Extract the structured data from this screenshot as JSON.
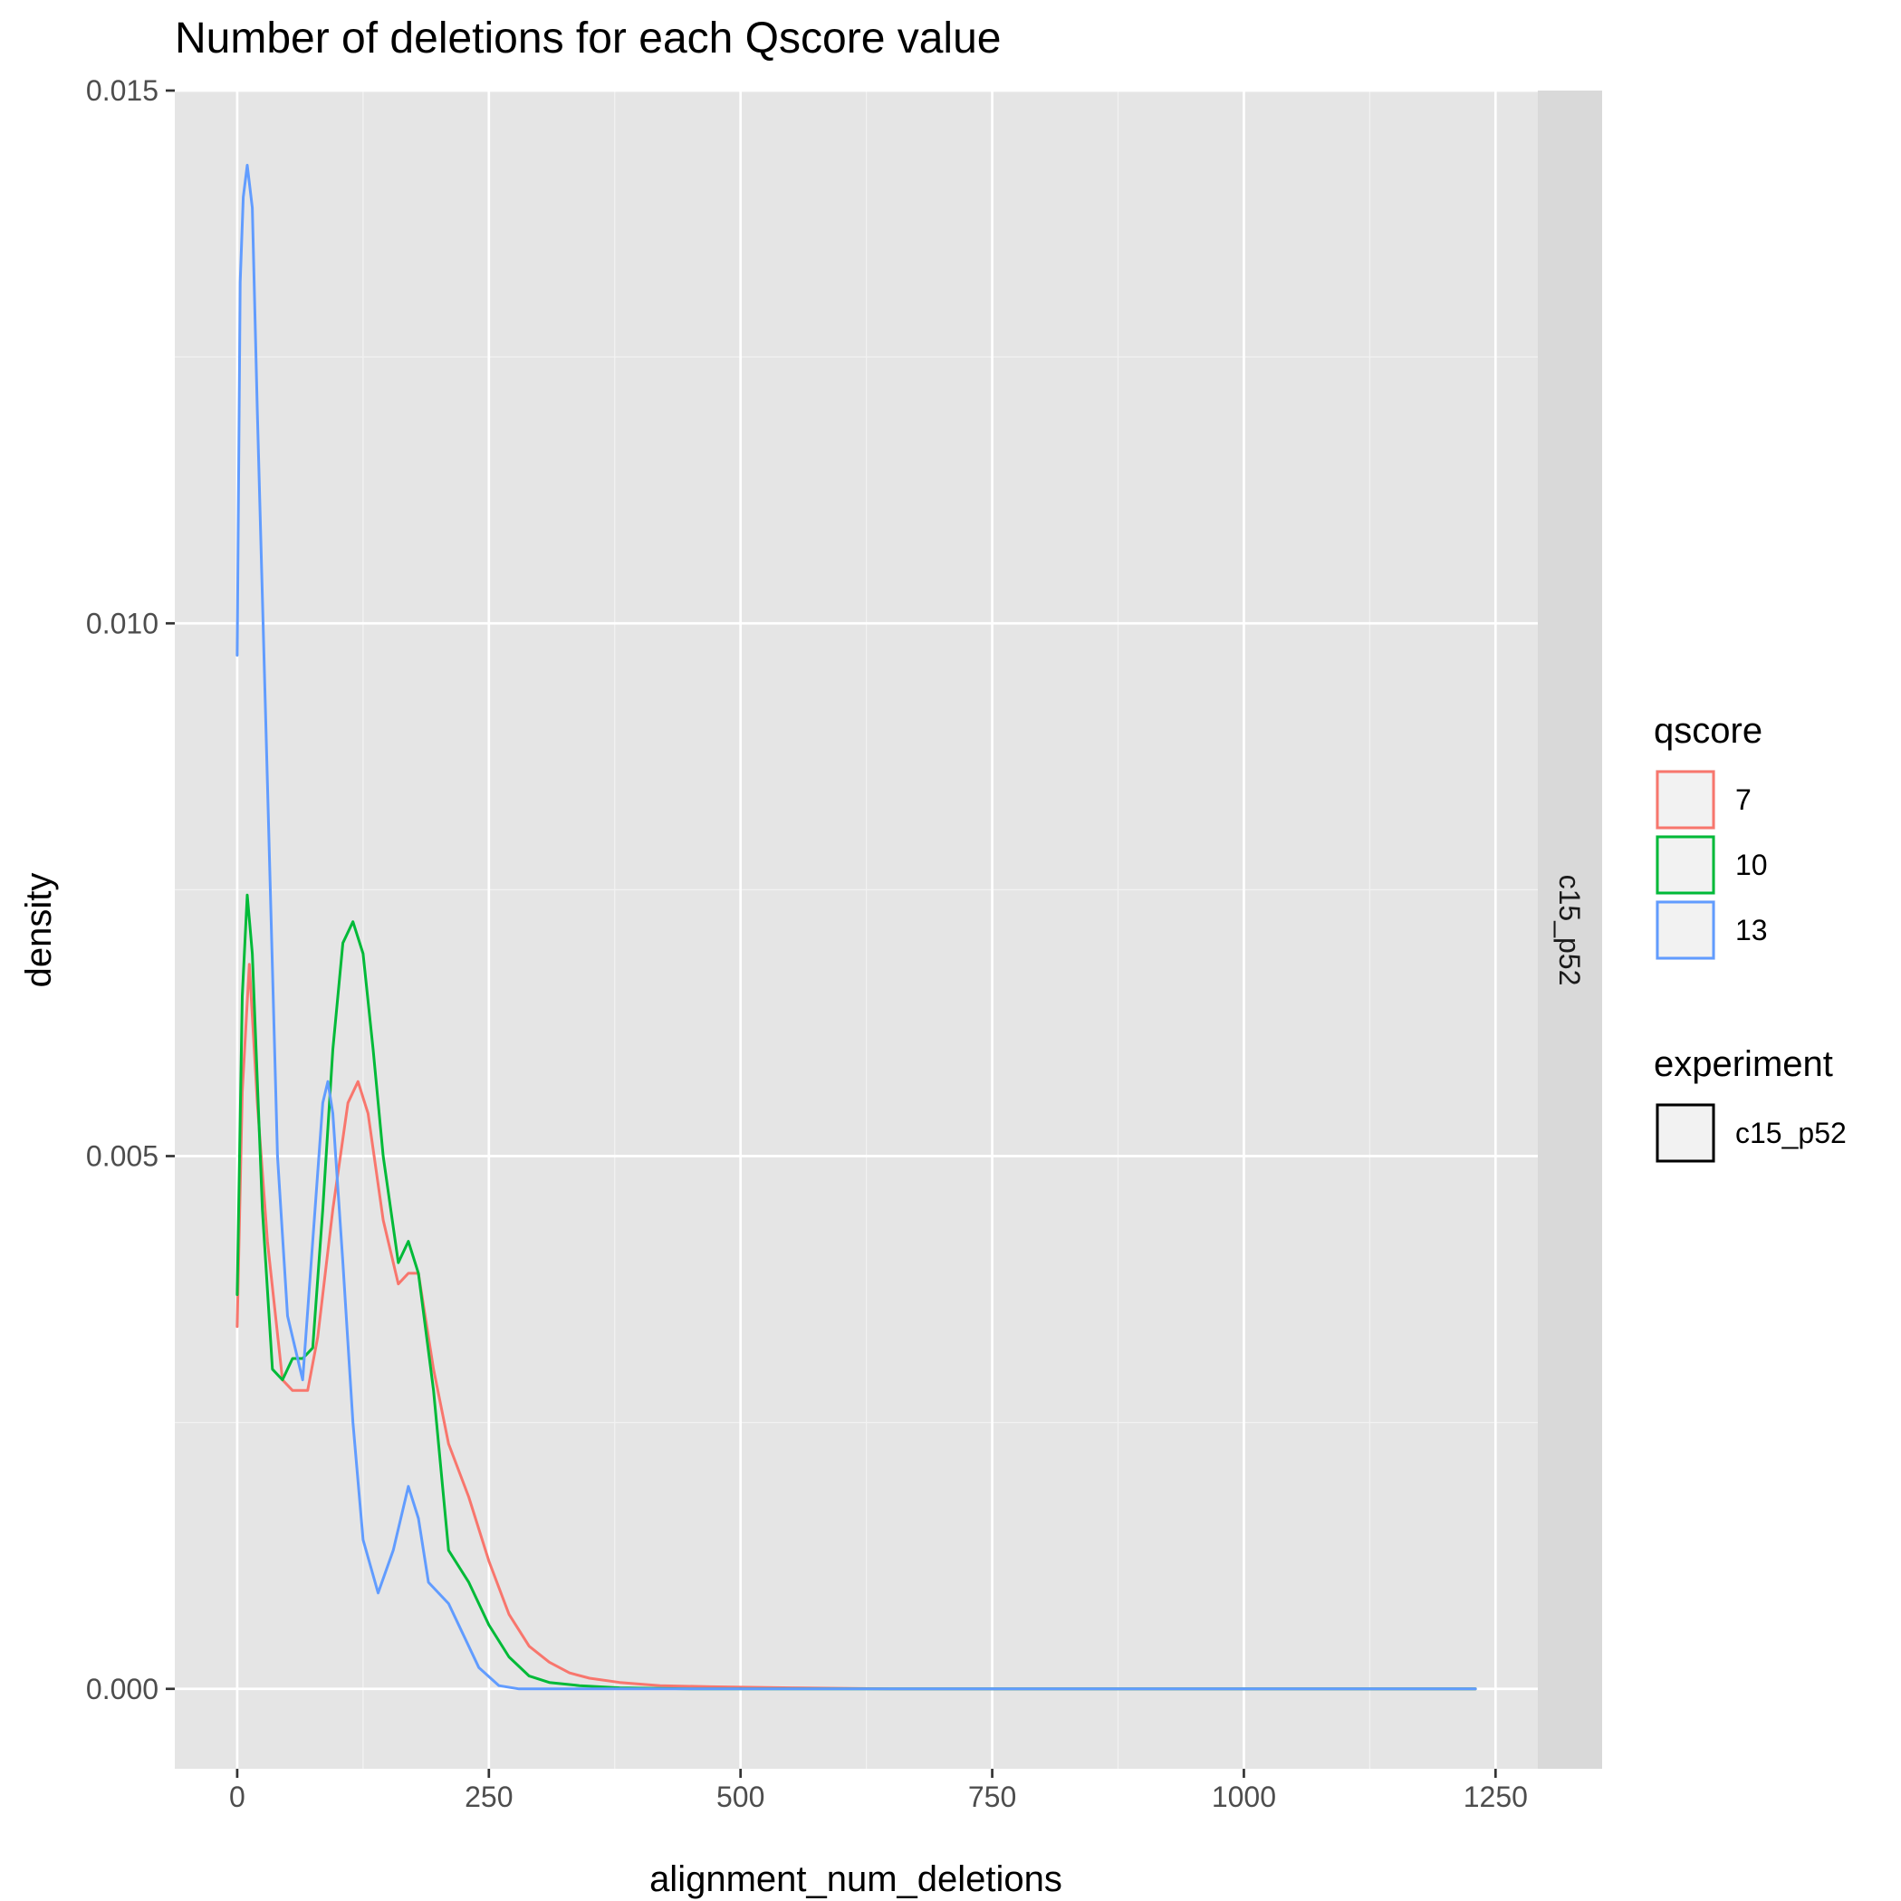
{
  "chart_data": {
    "type": "line",
    "title": "Number of deletions for each Qscore value",
    "xlabel": "alignment_num_deletions",
    "ylabel": "density",
    "xlim": [
      -62,
      1292
    ],
    "ylim": [
      -0.00075,
      0.015
    ],
    "x_ticks": [
      0,
      250,
      500,
      750,
      1000,
      1250
    ],
    "x_tick_labels": [
      "0",
      "250",
      "500",
      "750",
      "1000",
      "1250"
    ],
    "y_ticks": [
      0.0,
      0.005,
      0.01,
      0.015
    ],
    "y_tick_labels": [
      "0.000",
      "0.005",
      "0.010",
      "0.015"
    ],
    "grid": true,
    "facet_label": "c15_p52",
    "legend": {
      "position": "right",
      "groups": [
        {
          "title": "qscore",
          "entries": [
            {
              "label": "7",
              "color": "#F8766D"
            },
            {
              "label": "10",
              "color": "#00BA38"
            },
            {
              "label": "13",
              "color": "#619CFF"
            }
          ]
        },
        {
          "title": "experiment",
          "entries": [
            {
              "label": "c15_p52",
              "color": "#000000"
            }
          ]
        }
      ]
    },
    "series": [
      {
        "name": "7",
        "color": "#F8766D",
        "x": [
          0,
          5,
          12,
          20,
          30,
          45,
          55,
          70,
          80,
          95,
          110,
          120,
          130,
          145,
          160,
          170,
          180,
          195,
          210,
          230,
          250,
          270,
          290,
          310,
          330,
          350,
          380,
          420,
          470,
          550,
          650,
          800,
          1000,
          1230
        ],
        "y": [
          0.0034,
          0.0056,
          0.0068,
          0.0055,
          0.0042,
          0.0029,
          0.0028,
          0.0028,
          0.0033,
          0.0045,
          0.0055,
          0.0057,
          0.0054,
          0.0044,
          0.0038,
          0.0039,
          0.0039,
          0.003,
          0.0023,
          0.0018,
          0.0012,
          0.0007,
          0.0004,
          0.00025,
          0.00015,
          0.0001,
          6e-05,
          3e-05,
          2e-05,
          1e-05,
          0.0,
          0.0,
          0.0,
          0.0
        ]
      },
      {
        "name": "10",
        "color": "#00BA38",
        "x": [
          0,
          5,
          10,
          15,
          25,
          35,
          45,
          55,
          65,
          75,
          85,
          95,
          105,
          115,
          125,
          135,
          145,
          160,
          170,
          180,
          195,
          210,
          230,
          250,
          270,
          290,
          310,
          340,
          380,
          450,
          550,
          700,
          1000,
          1230
        ],
        "y": [
          0.0037,
          0.0065,
          0.00745,
          0.0069,
          0.0045,
          0.003,
          0.0029,
          0.0031,
          0.0031,
          0.0032,
          0.0045,
          0.006,
          0.007,
          0.0072,
          0.0069,
          0.006,
          0.005,
          0.004,
          0.0042,
          0.0039,
          0.0028,
          0.0013,
          0.001,
          0.0006,
          0.0003,
          0.00012,
          6e-05,
          3e-05,
          1e-05,
          0.0,
          0.0,
          0.0,
          0.0,
          0.0
        ]
      },
      {
        "name": "13",
        "color": "#619CFF",
        "x": [
          0,
          3,
          6,
          10,
          15,
          20,
          30,
          40,
          50,
          60,
          65,
          75,
          85,
          90,
          95,
          105,
          115,
          125,
          140,
          155,
          170,
          180,
          190,
          200,
          210,
          225,
          240,
          260,
          280,
          320,
          400,
          500,
          700,
          1000,
          1230
        ],
        "y": [
          0.0097,
          0.0132,
          0.014,
          0.0143,
          0.0139,
          0.012,
          0.0085,
          0.005,
          0.0035,
          0.0031,
          0.0029,
          0.0042,
          0.0055,
          0.0057,
          0.0054,
          0.004,
          0.0025,
          0.0014,
          0.0009,
          0.0013,
          0.0019,
          0.0016,
          0.001,
          0.0009,
          0.0008,
          0.0005,
          0.0002,
          3e-05,
          0.0,
          0.0,
          0.0,
          0.0,
          0.0,
          0.0,
          0.0
        ]
      }
    ]
  }
}
